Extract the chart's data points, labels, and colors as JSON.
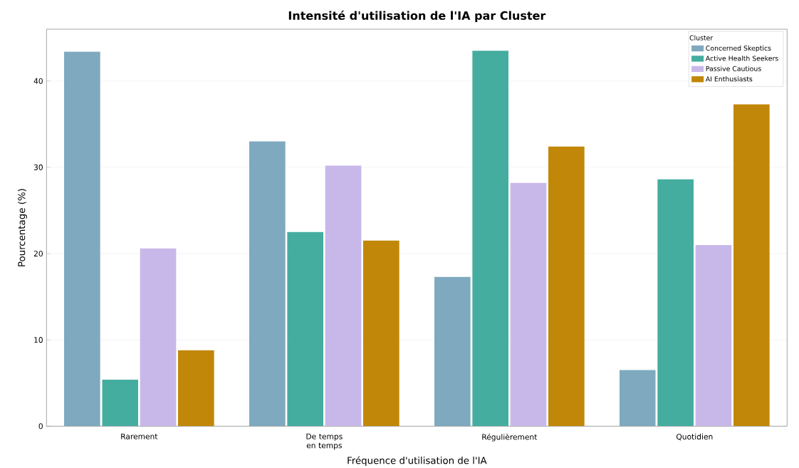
{
  "chart_data": {
    "type": "bar",
    "title": "Intensité d'utilisation de l'IA par Cluster",
    "xlabel": "Fréquence d'utilisation de l'IA",
    "ylabel": "Pourcentage (%)",
    "legend_title": "Cluster",
    "legend": "top right",
    "grid": "y",
    "categories": [
      "Rarement",
      "De temps en temps",
      "Régulièrement",
      "Quotidien"
    ],
    "ylim": [
      0,
      46
    ],
    "yticks": [
      0,
      10,
      20,
      30,
      40
    ],
    "series": [
      {
        "name": "Concerned Skeptics",
        "color": "#7fa9bf",
        "values": [
          43.4,
          33.0,
          17.3,
          6.5
        ]
      },
      {
        "name": "Active Health Seekers",
        "color": "#45ada0",
        "values": [
          5.4,
          22.5,
          43.5,
          28.6
        ]
      },
      {
        "name": "Passive Cautious",
        "color": "#c8b8ea",
        "values": [
          20.6,
          30.2,
          28.2,
          21.0
        ]
      },
      {
        "name": "AI Enthusiasts",
        "color": "#c18708",
        "values": [
          8.8,
          21.5,
          32.4,
          37.3
        ]
      }
    ]
  }
}
